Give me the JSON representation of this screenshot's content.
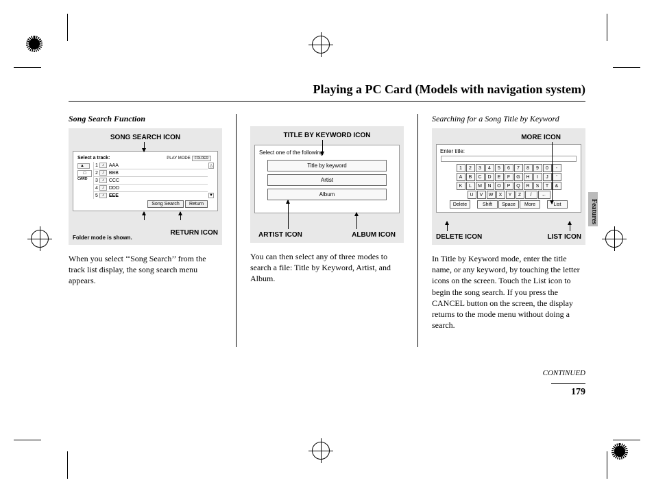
{
  "title": "Playing a PC Card (Models with navigation system)",
  "side_label": "Features",
  "continued": "CONTINUED",
  "page_number": "179",
  "col1": {
    "heading": "Song Search Function",
    "top_label": "SONG SEARCH ICON",
    "screen_header": "Select a track:",
    "play_mode": "PLAY MODE",
    "folder_btn": "FOLDER",
    "card_label": "CARD",
    "tracks": [
      {
        "n": "1",
        "name": "AAA"
      },
      {
        "n": "2",
        "name": "BBB"
      },
      {
        "n": "3",
        "name": "CCC"
      },
      {
        "n": "4",
        "name": "DDD"
      },
      {
        "n": "5",
        "name": "EEE"
      }
    ],
    "song_search_btn": "Song Search",
    "return_btn": "Return",
    "folder_note": "Folder mode is shown.",
    "bot_label": "RETURN ICON",
    "body": "When you select ‘‘Song Search’’ from the track list display, the song search menu appears."
  },
  "col2": {
    "top_label": "TITLE BY KEYWORD ICON",
    "screen_header": "Select one of the following:",
    "opt_title": "Title by keyword",
    "opt_artist": "Artist",
    "opt_album": "Album",
    "bot_left": "ARTIST ICON",
    "bot_right": "ALBUM ICON",
    "body": "You can then select any of three modes to search a file: Title by Keyword, Artist, and Album."
  },
  "col3": {
    "heading": "Searching for a Song Title by Keyword",
    "top_label": "MORE ICON",
    "screen_header": "Enter title:",
    "row1": [
      "1",
      "2",
      "3",
      "4",
      "5",
      "6",
      "7",
      "8",
      "9",
      "0",
      "-"
    ],
    "row2": [
      "A",
      "B",
      "C",
      "D",
      "E",
      "F",
      "G",
      "H",
      "I",
      "J",
      "'"
    ],
    "row3": [
      "K",
      "L",
      "M",
      "N",
      "O",
      "P",
      "Q",
      "R",
      "S",
      "T",
      "&"
    ],
    "row4": [
      "U",
      "V",
      "W",
      "X",
      "Y",
      "Z"
    ],
    "slash": "/",
    "bksp": "←",
    "btn_delete": "Delete",
    "btn_shift": "Shift",
    "btn_space": "Space",
    "btn_more": "More",
    "btn_list": "List",
    "bot_left": "DELETE ICON",
    "bot_right": "LIST ICON",
    "body": "In Title by Keyword mode, enter the title name, or any keyword, by touching the letter icons on the screen. Touch the List icon to begin the song search. If you press the CANCEL button on the screen, the display returns to the mode menu without doing a search."
  }
}
